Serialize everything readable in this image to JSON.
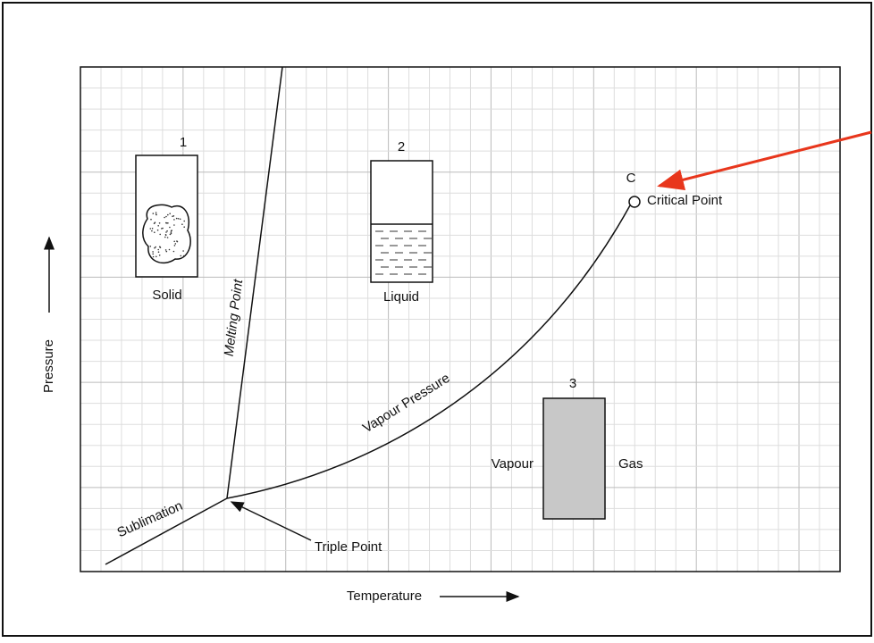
{
  "states": [
    {
      "number": "1",
      "label": "Solid"
    },
    {
      "number": "2",
      "label": "Liquid"
    },
    {
      "number": "3",
      "left_label": "Vapour",
      "right_label": "Gas"
    }
  ],
  "curves": {
    "melting": "Melting Point",
    "vapour": "Vapour Pressure",
    "sublimation": "Sublimation"
  },
  "points": {
    "critical_letter": "C",
    "critical": "Critical Point",
    "triple": "Triple Point"
  },
  "axes": {
    "y": "Pressure",
    "x": "Temperature"
  }
}
